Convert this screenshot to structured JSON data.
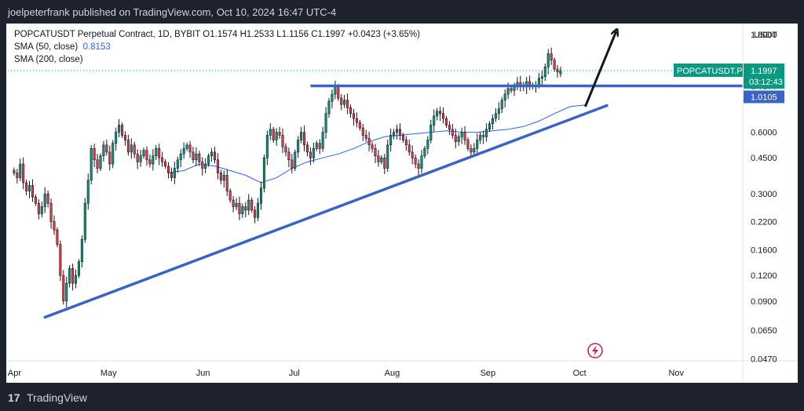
{
  "header": {
    "publisher": "joelpeterfrank published on TradingView.com, Oct 10, 2024 16:47 UTC-4"
  },
  "legend": {
    "symbol_line": "POPCATUSDT Perpetual Contract, 1D, BYBIT  O1.1574  H1.2533  L1.1156  C1.1997  +0.0423 (+3.65%)",
    "sma50_label": "SMA (50, close)",
    "sma50_value": "0.8153",
    "sma200_label": "SMA (200, close)"
  },
  "footer": {
    "logo": "17",
    "brand": "TradingView"
  },
  "colors": {
    "up": "#089981",
    "down": "#f23645",
    "wick": "#131722",
    "trend": "#3a63c8",
    "sma": "#2962ff",
    "price": "#089981"
  },
  "chart_data": {
    "type": "candlestick",
    "symbol": "POPCATUSDT Perpetual Contract",
    "interval": "1D",
    "exchange": "BYBIT",
    "scale": "log",
    "currency": "USDT",
    "ylim": [
      0.046,
      2.0
    ],
    "y_ticks": [
      1.8,
      1.1997,
      1.0105,
      0.6,
      0.45,
      0.3,
      0.22,
      0.16,
      0.12,
      0.09,
      0.065,
      0.047
    ],
    "y_tick_labels": [
      "1.8000",
      "1.1997",
      "1.0105",
      "0.6000",
      "0.4500",
      "0.3000",
      "0.2200",
      "0.1600",
      "0.1200",
      "0.0900",
      "0.0650",
      "0.0470"
    ],
    "x_labels": [
      {
        "label": "Apr",
        "day": 0
      },
      {
        "label": "May",
        "day": 30
      },
      {
        "label": "Jun",
        "day": 61
      },
      {
        "label": "Jul",
        "day": 91
      },
      {
        "label": "Aug",
        "day": 122
      },
      {
        "label": "Sep",
        "day": 153
      },
      {
        "label": "Oct",
        "day": 183
      },
      {
        "label": "Nov",
        "day": 214
      }
    ],
    "xlim_days": [
      -2,
      236
    ],
    "closes": [
      0.38,
      0.36,
      0.42,
      0.34,
      0.31,
      0.33,
      0.29,
      0.27,
      0.24,
      0.26,
      0.3,
      0.27,
      0.22,
      0.2,
      0.17,
      0.12,
      0.09,
      0.11,
      0.13,
      0.11,
      0.12,
      0.14,
      0.18,
      0.27,
      0.35,
      0.5,
      0.44,
      0.4,
      0.46,
      0.52,
      0.48,
      0.42,
      0.53,
      0.6,
      0.65,
      0.58,
      0.55,
      0.48,
      0.52,
      0.47,
      0.43,
      0.46,
      0.49,
      0.44,
      0.42,
      0.46,
      0.5,
      0.45,
      0.43,
      0.41,
      0.38,
      0.36,
      0.4,
      0.44,
      0.47,
      0.5,
      0.52,
      0.48,
      0.44,
      0.47,
      0.43,
      0.4,
      0.42,
      0.46,
      0.48,
      0.44,
      0.38,
      0.35,
      0.37,
      0.31,
      0.28,
      0.26,
      0.27,
      0.24,
      0.26,
      0.25,
      0.28,
      0.25,
      0.23,
      0.27,
      0.32,
      0.45,
      0.58,
      0.62,
      0.55,
      0.6,
      0.58,
      0.51,
      0.48,
      0.44,
      0.4,
      0.48,
      0.55,
      0.6,
      0.52,
      0.48,
      0.45,
      0.5,
      0.53,
      0.5,
      0.6,
      0.74,
      0.85,
      0.92,
      1.0,
      0.88,
      0.82,
      0.86,
      0.79,
      0.74,
      0.7,
      0.67,
      0.63,
      0.58,
      0.56,
      0.52,
      0.5,
      0.46,
      0.43,
      0.45,
      0.4,
      0.52,
      0.58,
      0.6,
      0.62,
      0.58,
      0.55,
      0.52,
      0.48,
      0.45,
      0.42,
      0.4,
      0.46,
      0.5,
      0.55,
      0.65,
      0.72,
      0.76,
      0.74,
      0.7,
      0.65,
      0.62,
      0.58,
      0.54,
      0.57,
      0.6,
      0.55,
      0.5,
      0.48,
      0.5,
      0.55,
      0.58,
      0.57,
      0.62,
      0.66,
      0.7,
      0.74,
      0.78,
      0.86,
      0.92,
      0.98,
      0.96,
      1.0,
      1.05,
      1.02,
      1.0,
      1.06,
      1.02,
      1.0,
      1.02,
      1.1,
      1.12,
      1.25,
      1.45,
      1.35,
      1.22,
      1.18,
      1.1997
    ],
    "start_day": 0,
    "ohlc_last": {
      "open": 1.1574,
      "high": 1.2533,
      "low": 1.1156,
      "close": 1.1997,
      "change": 0.0423,
      "change_pct": 3.65
    },
    "sma50": [
      [
        50,
        0.38
      ],
      [
        55,
        0.39
      ],
      [
        60,
        0.42
      ],
      [
        65,
        0.41
      ],
      [
        70,
        0.39
      ],
      [
        75,
        0.37
      ],
      [
        80,
        0.34
      ],
      [
        85,
        0.36
      ],
      [
        90,
        0.4
      ],
      [
        95,
        0.43
      ],
      [
        100,
        0.45
      ],
      [
        105,
        0.47
      ],
      [
        110,
        0.5
      ],
      [
        115,
        0.54
      ],
      [
        120,
        0.57
      ],
      [
        125,
        0.58
      ],
      [
        130,
        0.59
      ],
      [
        135,
        0.6
      ],
      [
        140,
        0.61
      ],
      [
        145,
        0.6
      ],
      [
        150,
        0.6
      ],
      [
        155,
        0.61
      ],
      [
        160,
        0.62
      ],
      [
        165,
        0.64
      ],
      [
        170,
        0.68
      ],
      [
        175,
        0.74
      ],
      [
        180,
        0.8
      ],
      [
        185,
        0.8153
      ]
    ],
    "sma50_value": 0.8153,
    "annotations": {
      "support_trendline": {
        "from": [
          10,
          0.075
        ],
        "to": [
          192,
          0.81
        ]
      },
      "resistance_line": {
        "from": [
          96,
          1.0105
        ],
        "to": [
          236,
          1.0105
        ],
        "label": "1.0105"
      },
      "arrow": {
        "from": [
          185,
          0.8
        ],
        "to": [
          195,
          2.0
        ]
      },
      "price_line": {
        "value": 1.1997,
        "symbol_label": "POPCATUSDT.P",
        "price_label": "1.1997",
        "countdown": "03:12:43"
      }
    }
  }
}
